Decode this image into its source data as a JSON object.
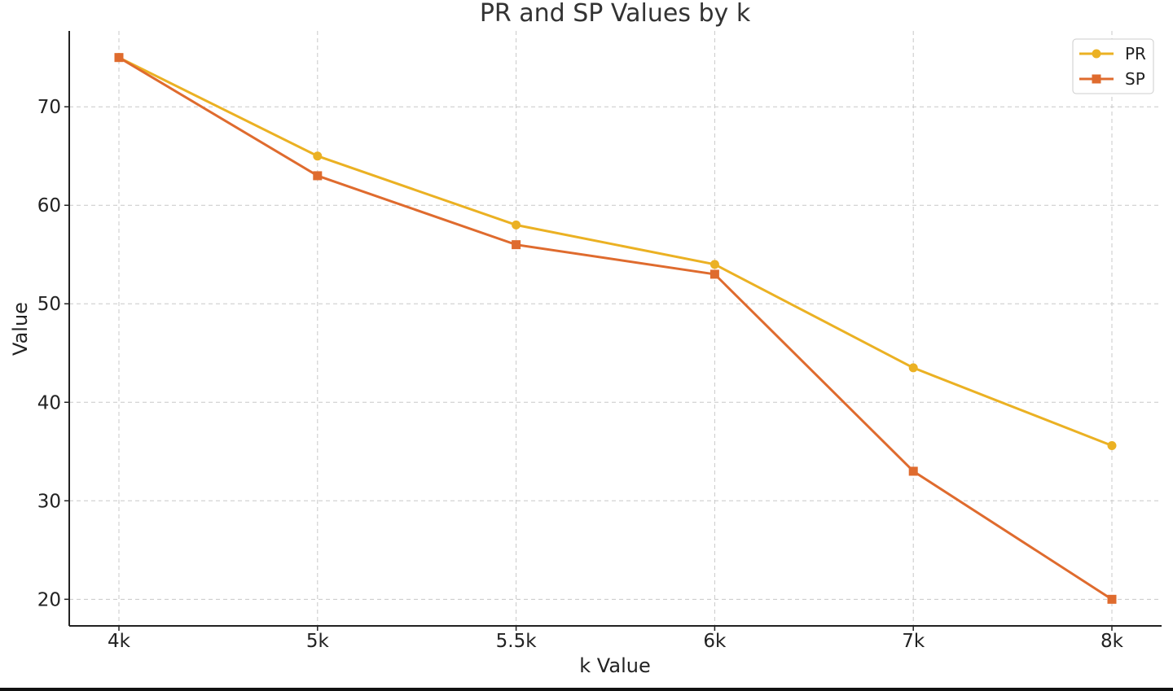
{
  "chart_data": {
    "type": "line",
    "title": "PR and SP Values by k",
    "xlabel": "k Value",
    "ylabel": "Value",
    "categories": [
      "4k",
      "5k",
      "5.5k",
      "6k",
      "7k",
      "8k"
    ],
    "yticks": [
      20,
      30,
      40,
      50,
      60,
      70
    ],
    "ylim": [
      17.3,
      77.7
    ],
    "grid": true,
    "legend_position": "top-right",
    "series": [
      {
        "name": "PR",
        "marker": "circle",
        "color": "#EBB123",
        "values": [
          75,
          65,
          58,
          54,
          43.5,
          35.6
        ]
      },
      {
        "name": "SP",
        "marker": "square",
        "color": "#DF6B2E",
        "values": [
          75,
          63,
          56,
          53,
          33,
          20
        ]
      }
    ]
  }
}
